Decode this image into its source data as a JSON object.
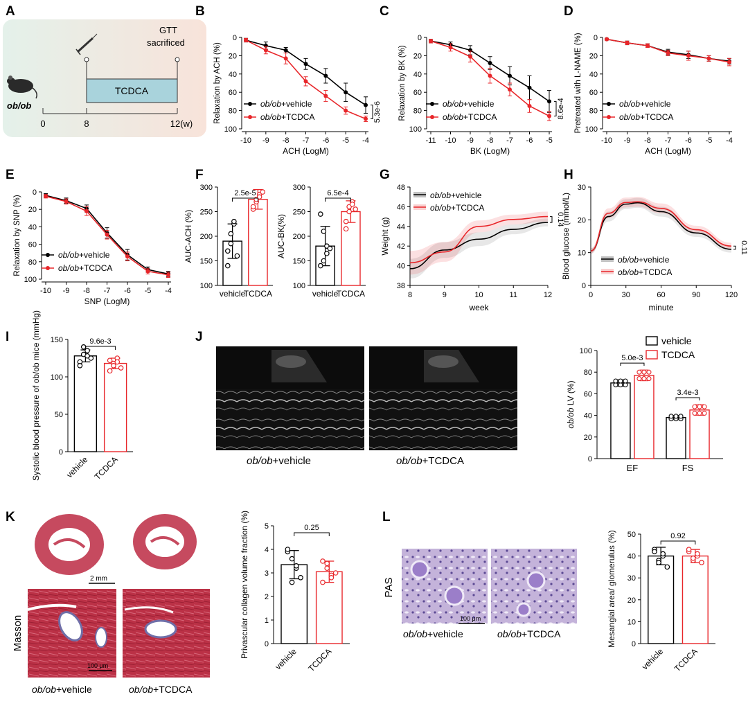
{
  "colors": {
    "vehicle": "#000000",
    "tcdca": "#e8262a",
    "box_fill": "#eaf3ee",
    "box_fill2": "#f6e2da",
    "tcdca_bar": "#a9d3dc",
    "us_bg": "#0c0c0c",
    "histo": "#c0394e",
    "pas_bg": "#c7b8de"
  },
  "legend": {
    "vehicle": "+vehicle",
    "tcdca": "+TCDCA",
    "prefix": "ob/ob"
  },
  "groups": {
    "vehicle": "vehicle",
    "tcdca": "TCDCA"
  },
  "panels": {
    "A": {
      "label": "A",
      "mouse_label": "ob/ob",
      "gtt": "GTT",
      "sacrificed": "sacrificed",
      "bar_label": "TCDCA",
      "t0": "0",
      "t8": "8",
      "t12": "12(w)"
    },
    "B": {
      "label": "B"
    },
    "C": {
      "label": "C"
    },
    "D": {
      "label": "D"
    },
    "E": {
      "label": "E"
    },
    "F": {
      "label": "F"
    },
    "G": {
      "label": "G"
    },
    "H": {
      "label": "H"
    },
    "I": {
      "label": "I"
    },
    "J": {
      "label": "J",
      "img_vehicle_caption": "+vehicle",
      "img_tcdca_caption": "+TCDCA"
    },
    "K": {
      "label": "K",
      "scale_top": "2 mm",
      "scale_bottom": "100 μm",
      "stain": "Masson"
    },
    "L": {
      "label": "L",
      "stain": "PAS",
      "scale": "100 μm"
    }
  },
  "chart_data": [
    {
      "id": "B",
      "type": "line",
      "xlabel": "ACH (LogM)",
      "ylabel": "Relaxation by ACH (%)",
      "x": [
        -10,
        -9,
        -8,
        -7,
        -6,
        -5,
        -4
      ],
      "xlim": [
        -10,
        -4
      ],
      "ylim": [
        0,
        100
      ],
      "y_inverted": true,
      "series": [
        {
          "name": "ob/ob+vehicle",
          "values": [
            3,
            9,
            14,
            29,
            42,
            60,
            74
          ],
          "err": [
            2,
            4,
            3,
            6,
            8,
            10,
            9
          ]
        },
        {
          "name": "ob/ob+TCDCA",
          "values": [
            3,
            14,
            23,
            48,
            64,
            80,
            89
          ],
          "err": [
            2,
            4,
            6,
            5,
            6,
            4,
            3
          ]
        }
      ],
      "annotation": "5.3e-6"
    },
    {
      "id": "C",
      "type": "line",
      "xlabel": "BK (LogM)",
      "ylabel": "Relaxation by BK (%)",
      "x": [
        -11,
        -10,
        -9,
        -8,
        -7,
        -6,
        -5
      ],
      "xlim": [
        -11,
        -5
      ],
      "ylim": [
        0,
        100
      ],
      "y_inverted": true,
      "series": [
        {
          "name": "ob/ob+vehicle",
          "values": [
            4,
            8,
            14,
            28,
            42,
            55,
            70
          ],
          "err": [
            2,
            3,
            5,
            7,
            10,
            13,
            12
          ]
        },
        {
          "name": "ob/ob+TCDCA",
          "values": [
            4,
            11,
            21,
            42,
            57,
            75,
            86
          ],
          "err": [
            2,
            4,
            6,
            8,
            7,
            7,
            5
          ]
        }
      ],
      "annotation": "8.6e-4"
    },
    {
      "id": "D",
      "type": "line",
      "xlabel": "ACH (LogM)",
      "ylabel": "Pretreated with L-NAME (%)",
      "x": [
        -10,
        -9,
        -8,
        -7,
        -6,
        -5,
        -4
      ],
      "xlim": [
        -10,
        -4
      ],
      "ylim": [
        0,
        100
      ],
      "y_inverted": true,
      "series": [
        {
          "name": "ob/ob+vehicle",
          "values": [
            2,
            6,
            9,
            16,
            19,
            23,
            26
          ],
          "err": [
            1,
            2,
            2,
            3,
            4,
            3,
            3
          ]
        },
        {
          "name": "ob/ob+TCDCA",
          "values": [
            2,
            6,
            9,
            17,
            20,
            23,
            27
          ],
          "err": [
            1,
            2,
            2,
            3,
            5,
            3,
            4
          ]
        }
      ]
    },
    {
      "id": "E",
      "type": "line",
      "xlabel": "SNP (LogM)",
      "ylabel": "Relaxation by SNP (%)",
      "x": [
        -10,
        -9,
        -8,
        -7,
        -6,
        -5,
        -4
      ],
      "xlim": [
        -10,
        -4
      ],
      "ylim": [
        0,
        100
      ],
      "y_inverted": true,
      "series": [
        {
          "name": "ob/ob+vehicle",
          "values": [
            4,
            10,
            19,
            47,
            72,
            89,
            94
          ],
          "err": [
            2,
            3,
            4,
            6,
            6,
            3,
            3
          ]
        },
        {
          "name": "ob/ob+TCDCA",
          "values": [
            5,
            11,
            22,
            49,
            74,
            91,
            95
          ],
          "err": [
            2,
            3,
            5,
            5,
            5,
            3,
            3
          ]
        }
      ]
    },
    {
      "id": "F1",
      "type": "bar",
      "ylabel": "AUC-ACH (%)",
      "categories": [
        "vehicle",
        "TCDCA"
      ],
      "ylim": [
        100,
        300
      ],
      "yticks": [
        100,
        150,
        200,
        250,
        300
      ],
      "means": [
        190,
        275
      ],
      "sd": [
        35,
        20
      ],
      "points": [
        [
          170,
          205,
          225,
          160,
          140,
          185,
          230
        ],
        [
          255,
          270,
          285,
          290,
          260,
          275,
          280
        ]
      ],
      "annotation": "2.5e-5"
    },
    {
      "id": "F2",
      "type": "bar",
      "ylabel": "AUC-BK(%)",
      "categories": [
        "vehicle",
        "TCDCA"
      ],
      "ylim": [
        100,
        300
      ],
      "yticks": [
        100,
        150,
        200,
        250,
        300
      ],
      "means": [
        180,
        250
      ],
      "sd": [
        40,
        22
      ],
      "points": [
        [
          140,
          210,
          180,
          175,
          245,
          150,
          165
        ],
        [
          230,
          260,
          270,
          255,
          215,
          250,
          265
        ]
      ],
      "annotation": "6.5e-4"
    },
    {
      "id": "G",
      "type": "line",
      "xlabel": "week",
      "ylabel": "Weight (g)",
      "x": [
        8,
        9,
        10,
        11,
        12
      ],
      "xlim": [
        8,
        12
      ],
      "ylim": [
        38,
        48
      ],
      "yticks": [
        38,
        40,
        42,
        44,
        46,
        48
      ],
      "series": [
        {
          "name": "ob/ob+vehicle",
          "values": [
            39.7,
            41.6,
            42.7,
            43.7,
            44.4
          ],
          "band": [
            1.0,
            0.8,
            0.7,
            0.5,
            0.4
          ]
        },
        {
          "name": "ob/ob+TCDCA",
          "values": [
            40.3,
            41.4,
            44.0,
            44.7,
            45.0
          ],
          "band": [
            1.2,
            1.0,
            0.6,
            0.5,
            0.5
          ]
        }
      ],
      "annotation": "0.14"
    },
    {
      "id": "H",
      "type": "line",
      "xlabel": "minute",
      "ylabel": "Blood glucose (mmol/L)",
      "x": [
        0,
        15,
        30,
        40,
        60,
        90,
        120
      ],
      "xlim": [
        0,
        120
      ],
      "ylim": [
        0,
        30
      ],
      "yticks": [
        0,
        10,
        20,
        30
      ],
      "series": [
        {
          "name": "ob/ob+vehicle",
          "values": [
            10.5,
            21,
            24.8,
            25.2,
            22.5,
            16,
            11
          ],
          "band": [
            0.8,
            1.5,
            1.5,
            1.5,
            1.5,
            1.2,
            1
          ]
        },
        {
          "name": "ob/ob+TCDCA",
          "values": [
            10.5,
            22,
            25.3,
            25.5,
            23.5,
            17,
            12
          ],
          "band": [
            0.8,
            1.5,
            1.5,
            1.5,
            1.5,
            1.2,
            1
          ]
        }
      ],
      "annotation": "0.11"
    },
    {
      "id": "I",
      "type": "bar",
      "ylabel": "Systolic blood pressure of ob/ob mice (mmHg)",
      "categories": [
        "vehicle",
        "TCDCA"
      ],
      "ylim": [
        0,
        150
      ],
      "yticks": [
        0,
        50,
        100,
        150
      ],
      "means": [
        128,
        118
      ],
      "sd": [
        8,
        7
      ],
      "points": [
        [
          120,
          130,
          135,
          125,
          115,
          140,
          128
        ],
        [
          108,
          118,
          125,
          112,
          122,
          115,
          120
        ]
      ],
      "annotation": "9.6e-3"
    },
    {
      "id": "J",
      "type": "bar",
      "ylabel": "ob/ob LV (%)",
      "categories": [
        "EF",
        "FS"
      ],
      "ylim": [
        0,
        100
      ],
      "yticks": [
        0,
        20,
        40,
        60,
        80,
        100
      ],
      "series": [
        {
          "name": "vehicle",
          "means": [
            70,
            38
          ],
          "sd": [
            3,
            2
          ]
        },
        {
          "name": "TCDCA",
          "means": [
            77,
            45
          ],
          "sd": [
            5,
            5
          ]
        }
      ],
      "annotations": [
        "5.0e-3",
        "3.4e-3"
      ]
    },
    {
      "id": "K",
      "type": "bar",
      "ylabel": "Privascular collagen volume fraction (%)",
      "categories": [
        "vehicle",
        "TCDCA"
      ],
      "ylim": [
        0,
        5
      ],
      "yticks": [
        0,
        1,
        2,
        3,
        4,
        5
      ],
      "means": [
        3.35,
        3.05
      ],
      "sd": [
        0.6,
        0.45
      ],
      "points": [
        [
          3.9,
          3.6,
          3.2,
          2.8,
          4.0,
          2.6,
          3.3
        ],
        [
          3.5,
          3.2,
          2.9,
          3.0,
          2.6,
          3.4,
          2.8
        ]
      ],
      "annotation": "0.25"
    },
    {
      "id": "L",
      "type": "bar",
      "ylabel": "Mesangial area/ glomerulus (%)",
      "categories": [
        "vehicle",
        "TCDCA"
      ],
      "ylim": [
        0,
        50
      ],
      "yticks": [
        0,
        10,
        20,
        30,
        40,
        50
      ],
      "means": [
        40,
        40
      ],
      "sd": [
        4,
        3
      ],
      "points": [
        [
          43,
          38,
          40,
          35,
          42,
          37,
          41
        ],
        [
          42,
          38,
          40,
          37,
          43,
          39,
          41
        ]
      ],
      "annotation": "0.92"
    }
  ]
}
